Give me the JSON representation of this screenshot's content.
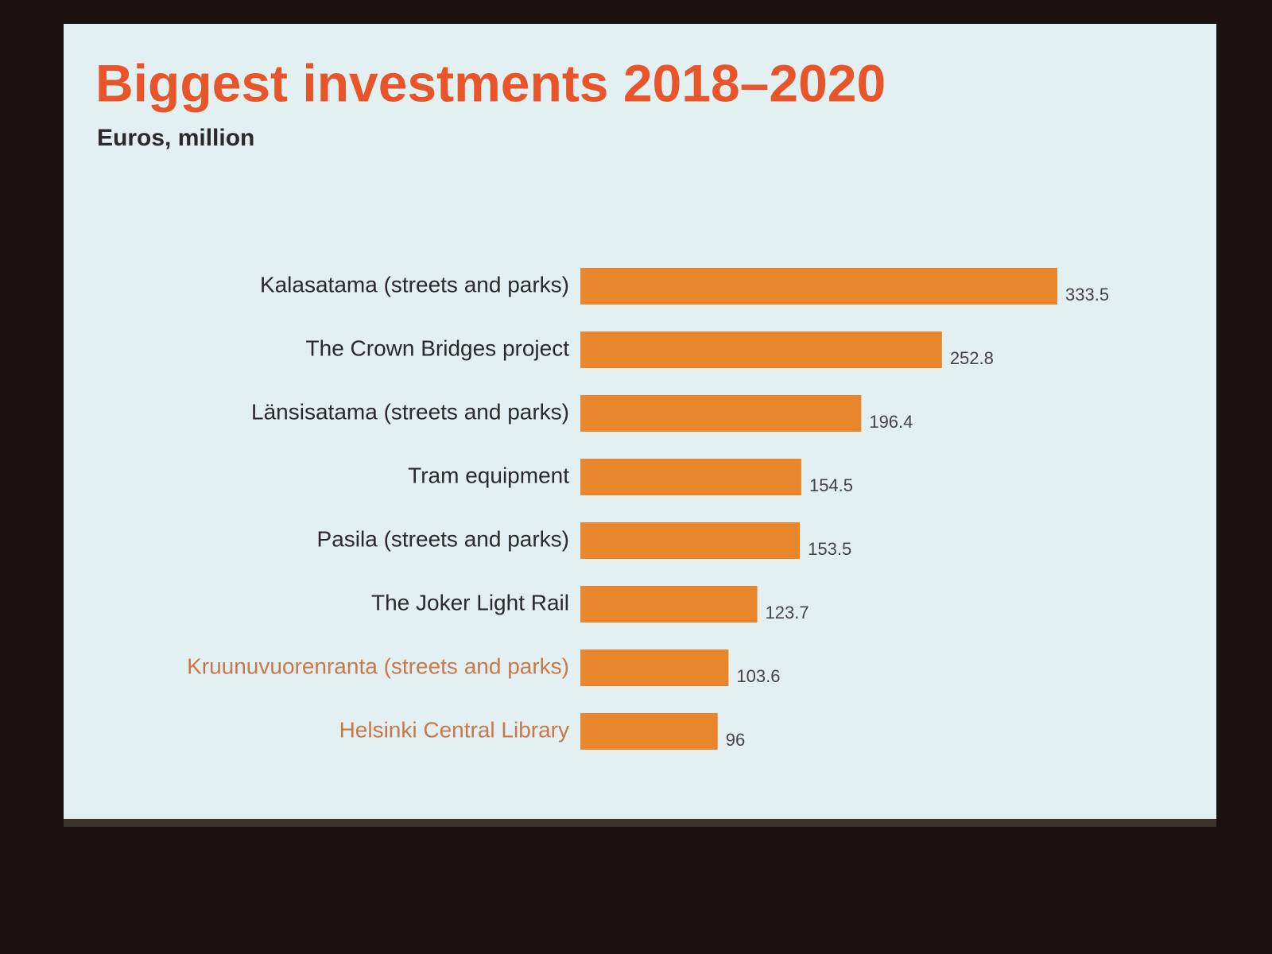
{
  "chart_data": {
    "type": "hbar",
    "title": "Biggest investments 2018–2020",
    "subtitle": "Euros, million",
    "categories": [
      "Kalasatama (streets and parks)",
      "The Crown Bridges project",
      "Länsisatama (streets and parks)",
      "Tram equipment",
      "Pasila (streets and parks)",
      "The Joker Light Rail",
      "Kruunuvuorenranta (streets and parks)",
      "Helsinki Central Library"
    ],
    "values": [
      333.5,
      252.8,
      196.4,
      154.5,
      153.5,
      123.7,
      103.6,
      96
    ],
    "color": "#e9862c",
    "label_colors": [
      "#2a2a2a",
      "#2a2a2a",
      "#2a2a2a",
      "#2a2a2a",
      "#2a2a2a",
      "#2a2a2a",
      "#c9784a",
      "#c9784a"
    ],
    "title_color": "#e8552a"
  }
}
